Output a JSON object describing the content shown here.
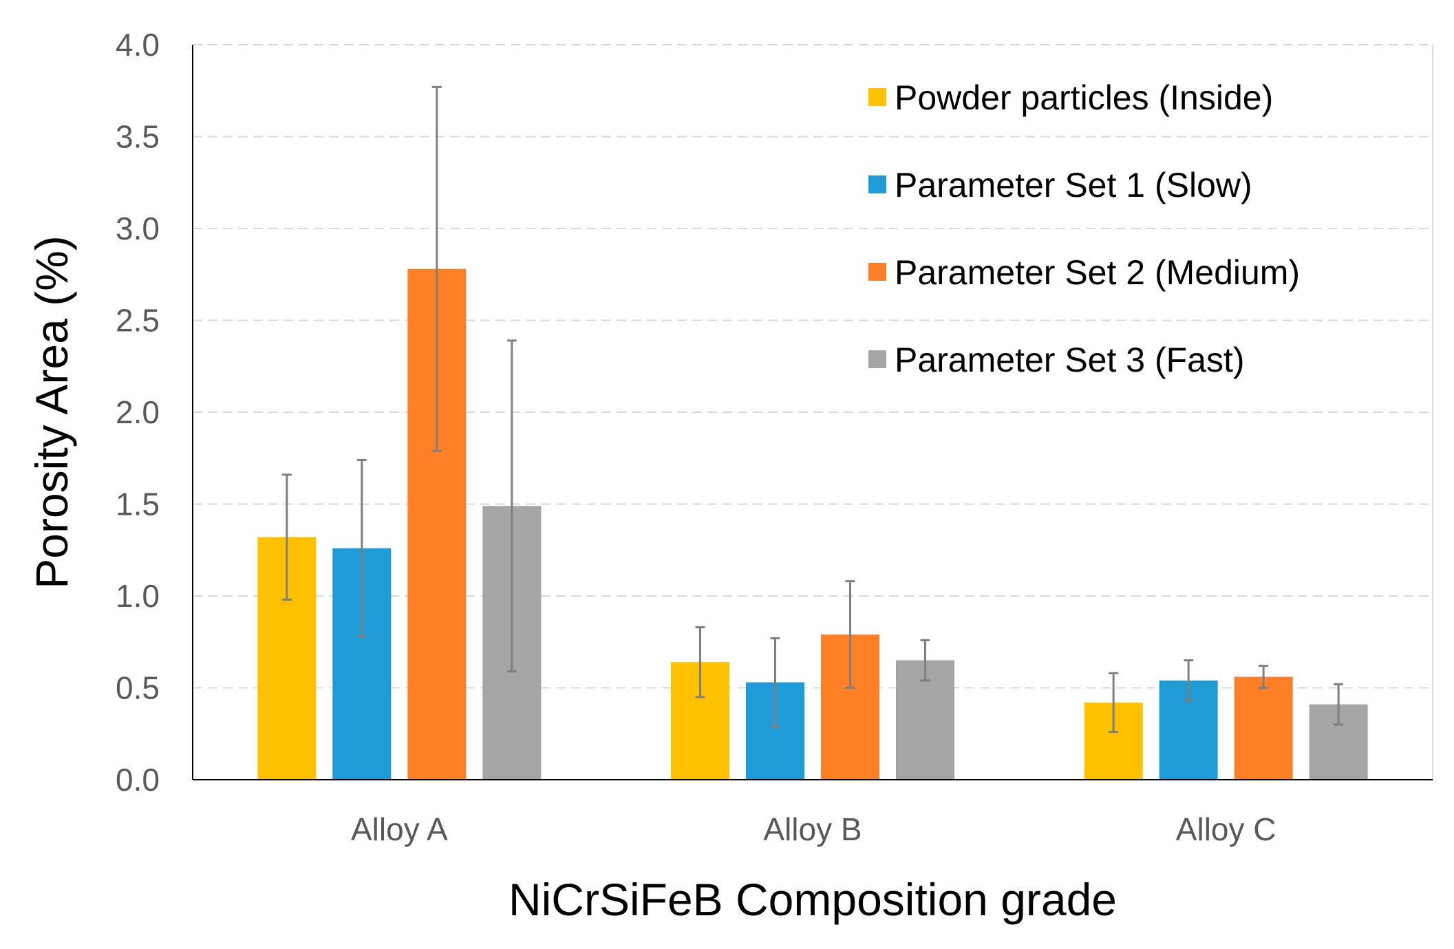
{
  "chart_data": {
    "type": "bar",
    "title": "",
    "xlabel": "NiCrSiFeB Composition grade",
    "ylabel": "Porosity Area (%)",
    "ylim": [
      0,
      4.0
    ],
    "ytick_step": 0.5,
    "ytick_labels": [
      "0.0",
      "0.5",
      "1.0",
      "1.5",
      "2.0",
      "2.5",
      "3.0",
      "3.5",
      "4.0"
    ],
    "grid": true,
    "legend_position": "top-right",
    "categories": [
      "Alloy A",
      "Alloy B",
      "Alloy C"
    ],
    "series": [
      {
        "name": "Powder particles (Inside)",
        "color": "#ffc000",
        "values": [
          1.32,
          0.64,
          0.42
        ],
        "errors": [
          0.34,
          0.19,
          0.16
        ]
      },
      {
        "name": "Parameter Set 1 (Slow)",
        "color": "#1f9bd7",
        "values": [
          1.26,
          0.53,
          0.54
        ],
        "errors": [
          0.48,
          0.24,
          0.11
        ]
      },
      {
        "name": "Parameter Set 2 (Medium)",
        "color": "#ff7f27",
        "values": [
          2.78,
          0.79,
          0.56
        ],
        "errors": [
          0.99,
          0.29,
          0.06
        ]
      },
      {
        "name": "Parameter Set 3 (Fast)",
        "color": "#a5a5a5",
        "values": [
          1.49,
          0.65,
          0.41
        ],
        "errors": [
          0.9,
          0.11,
          0.11
        ]
      }
    ]
  }
}
